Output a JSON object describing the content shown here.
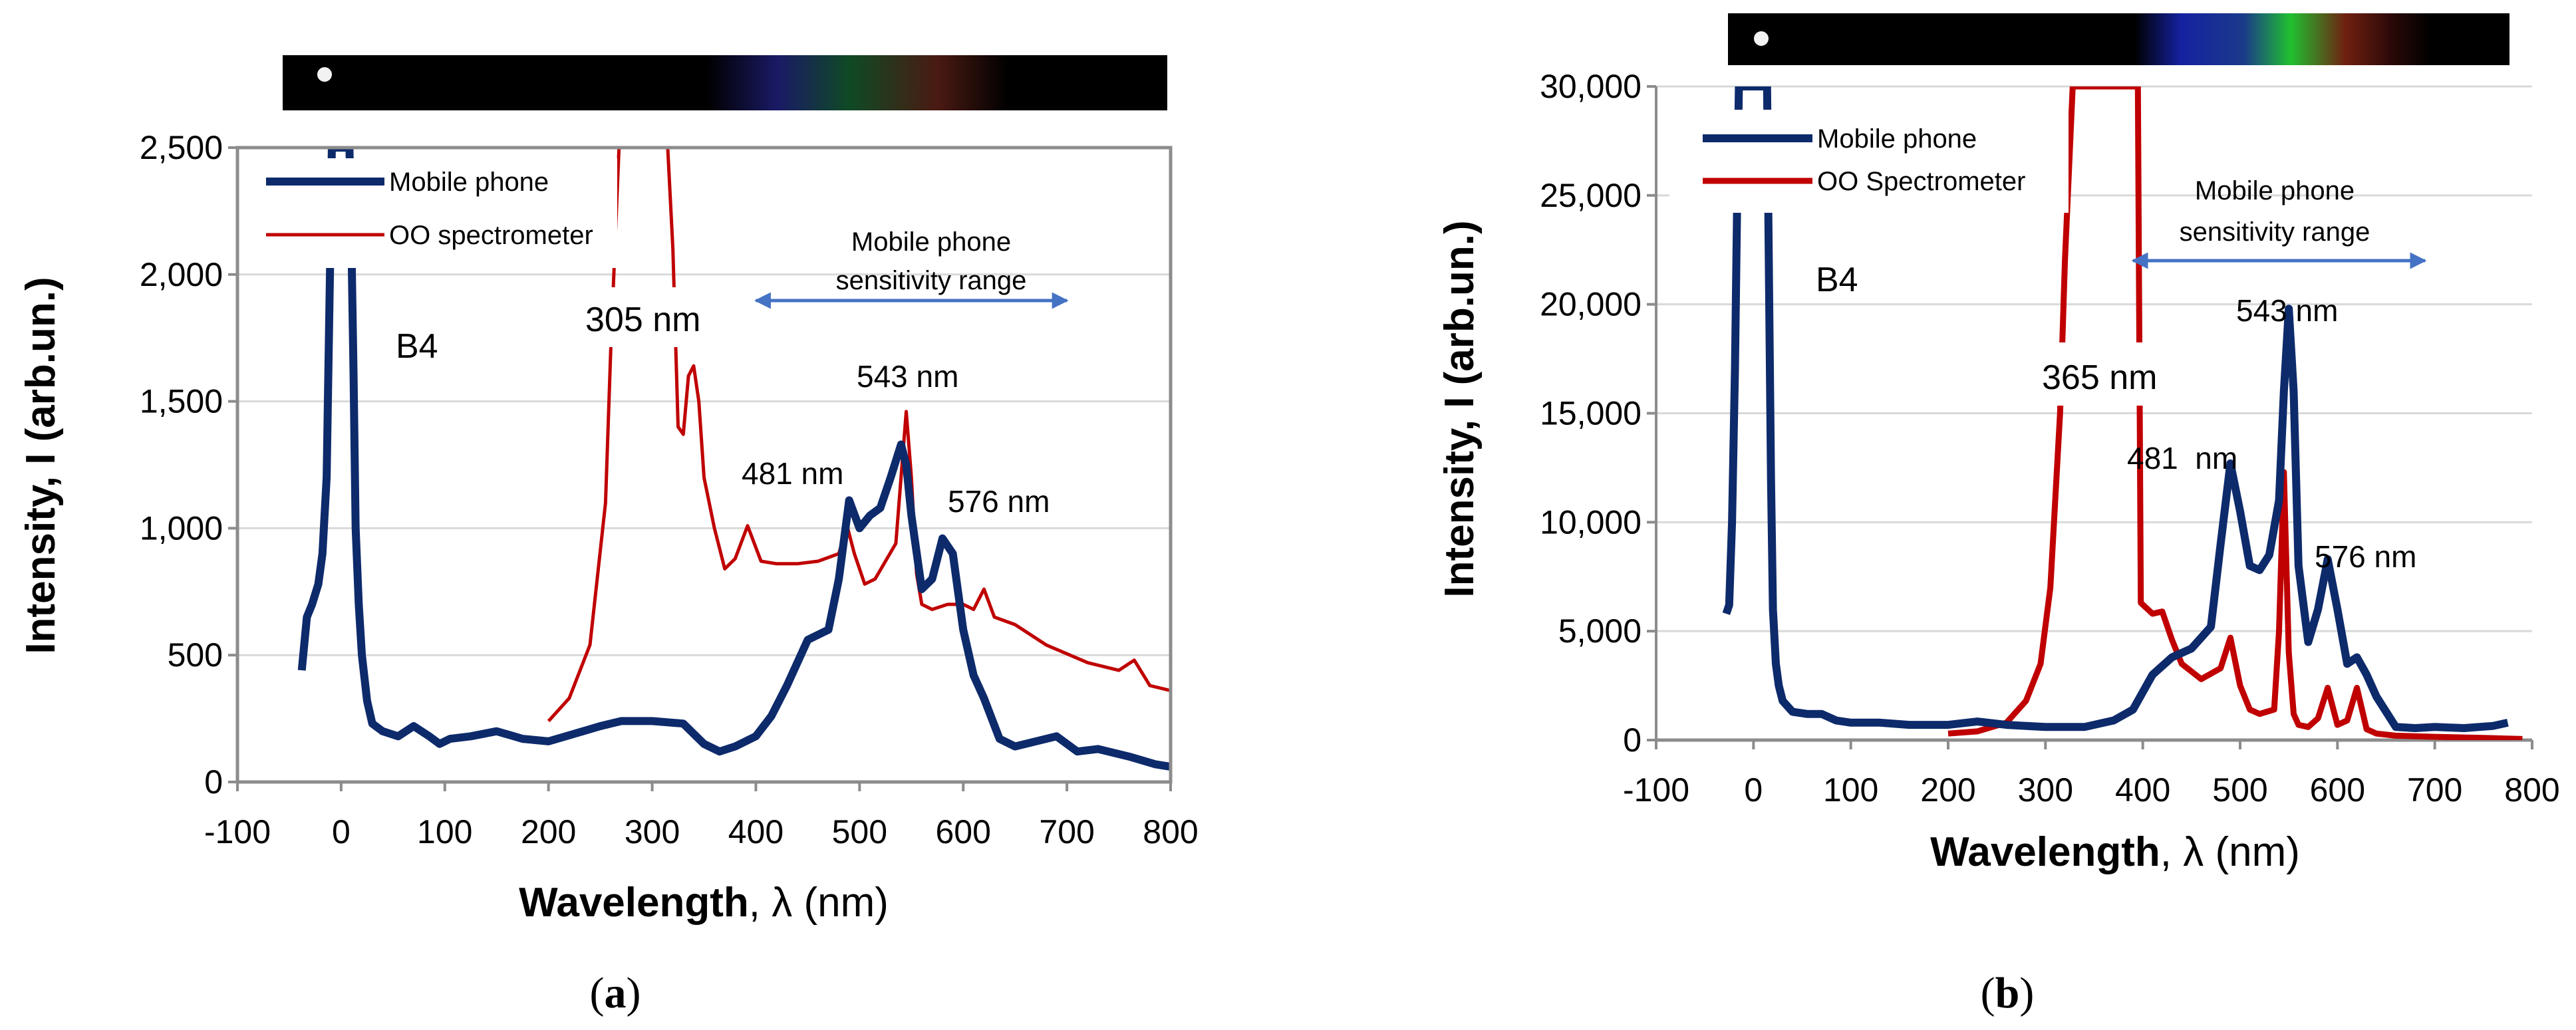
{
  "colors": {
    "mobile": "#0d2a6b",
    "oo": "#c00000",
    "arrow": "#4472c4"
  },
  "chart_data": [
    {
      "type": "line",
      "panel_label": "a",
      "caption_open": "(",
      "caption_close": ")",
      "sample_label": "B4",
      "xlabel_bold": "Wavelength",
      "xlabel_rest": ", λ (nm)",
      "ylabel": "Intensity, I (arb.un.)",
      "xlim": [
        -100,
        800
      ],
      "ylim": [
        0,
        2500
      ],
      "xticks": [
        -100,
        0,
        100,
        200,
        300,
        400,
        500,
        600,
        700,
        800
      ],
      "yticks": [
        0,
        500,
        1000,
        1500,
        2000,
        2500
      ],
      "xtick_labels": [
        "-100",
        "0",
        "100",
        "200",
        "300",
        "400",
        "500",
        "600",
        "700",
        "800"
      ],
      "ytick_labels": [
        "0",
        "500",
        "1,000",
        "1,500",
        "2,000",
        "2,500"
      ],
      "grid": "horizontal",
      "legend": [
        "Mobile phone",
        "OO spectrometer"
      ],
      "range_label_line1": "Mobile phone",
      "range_label_line2": "sensitivity range",
      "range_arrow": [
        400,
        700
      ],
      "annotations": [
        "305 nm",
        "481 nm",
        "543 nm",
        "576 nm"
      ],
      "series": [
        {
          "name": "Mobile phone",
          "x": [
            -38,
            -33,
            -28,
            -22,
            -18,
            -14,
            -12,
            -10,
            -9,
            8,
            10,
            12,
            14,
            17,
            20,
            25,
            30,
            40,
            55,
            70,
            85,
            95,
            105,
            125,
            150,
            175,
            200,
            225,
            250,
            270,
            300,
            330,
            350,
            365,
            380,
            400,
            415,
            430,
            450,
            470,
            480,
            490,
            500,
            510,
            520,
            530,
            540,
            545,
            550,
            560,
            570,
            580,
            590,
            600,
            610,
            620,
            635,
            650,
            670,
            690,
            710,
            730,
            760,
            785,
            800
          ],
          "y": [
            440,
            650,
            700,
            780,
            900,
            1200,
            1700,
            2200,
            2500,
            2500,
            2100,
            1600,
            1000,
            700,
            500,
            320,
            230,
            200,
            180,
            220,
            180,
            150,
            170,
            180,
            200,
            170,
            160,
            190,
            220,
            240,
            240,
            230,
            150,
            120,
            140,
            180,
            260,
            380,
            560,
            600,
            800,
            1110,
            1000,
            1050,
            1080,
            1200,
            1330,
            1250,
            1050,
            760,
            800,
            960,
            900,
            600,
            420,
            330,
            170,
            140,
            160,
            180,
            120,
            130,
            100,
            70,
            60
          ]
        },
        {
          "name": "OO spectrometer",
          "x": [
            200,
            220,
            240,
            255,
            260,
            265,
            268,
            315,
            320,
            325,
            330,
            335,
            340,
            345,
            350,
            360,
            370,
            380,
            392,
            405,
            420,
            440,
            460,
            480,
            488,
            495,
            505,
            515,
            525,
            535,
            540,
            545,
            550,
            555,
            560,
            570,
            585,
            600,
            610,
            620,
            630,
            650,
            680,
            720,
            750,
            765,
            780,
            800
          ],
          "y": [
            240,
            330,
            540,
            1100,
            1700,
            2200,
            2500,
            2500,
            2100,
            1400,
            1370,
            1600,
            1640,
            1500,
            1200,
            1000,
            840,
            880,
            1010,
            870,
            860,
            860,
            870,
            900,
            1010,
            900,
            780,
            800,
            870,
            940,
            1200,
            1460,
            1200,
            820,
            700,
            680,
            700,
            700,
            680,
            760,
            650,
            620,
            540,
            470,
            440,
            480,
            380,
            360
          ]
        }
      ]
    },
    {
      "type": "line",
      "panel_label": "b",
      "caption_open": "(",
      "caption_close": ")",
      "sample_label": "B4",
      "xlabel_bold": "Wavelength",
      "xlabel_rest": ", λ (nm)",
      "ylabel": "Intensity, I (arb.un.)",
      "xlim": [
        -100,
        800
      ],
      "ylim": [
        0,
        30000
      ],
      "xticks": [
        -100,
        0,
        100,
        200,
        300,
        400,
        500,
        600,
        700,
        800
      ],
      "yticks": [
        0,
        5000,
        10000,
        15000,
        20000,
        25000,
        30000
      ],
      "xtick_labels": [
        "-100",
        "0",
        "100",
        "200",
        "300",
        "400",
        "500",
        "600",
        "700",
        "800"
      ],
      "ytick_labels": [
        "0",
        "5,000",
        "10,000",
        "15,000",
        "20,000",
        "25,000",
        "30,000"
      ],
      "grid": "horizontal",
      "legend": [
        "Mobile phone",
        "OO Spectrometer"
      ],
      "range_label_line1": "Mobile phone",
      "range_label_line2": "sensitivity range",
      "range_arrow": [
        390,
        690
      ],
      "annotations": [
        "365 nm",
        "481  nm",
        "543 nm",
        "576 nm"
      ],
      "series": [
        {
          "name": "Mobile phone",
          "x": [
            -28,
            -25,
            -22,
            -19,
            -17,
            -15,
            14,
            16,
            18,
            20,
            23,
            26,
            30,
            40,
            55,
            70,
            85,
            100,
            130,
            160,
            200,
            230,
            260,
            300,
            340,
            370,
            390,
            410,
            430,
            450,
            470,
            480,
            490,
            500,
            510,
            520,
            530,
            540,
            545,
            550,
            555,
            560,
            570,
            580,
            590,
            600,
            610,
            620,
            630,
            640,
            660,
            680,
            700,
            730,
            760,
            775
          ],
          "y": [
            5800,
            6200,
            10000,
            17000,
            24000,
            30000,
            30000,
            21000,
            12000,
            6000,
            3500,
            2500,
            1800,
            1300,
            1200,
            1200,
            900,
            800,
            800,
            700,
            700,
            850,
            700,
            600,
            600,
            900,
            1400,
            3000,
            3800,
            4200,
            5200,
            9000,
            12700,
            10500,
            8000,
            7800,
            8500,
            11000,
            16000,
            19800,
            16000,
            8000,
            4500,
            6000,
            8300,
            6000,
            3500,
            3800,
            3000,
            2000,
            600,
            550,
            600,
            550,
            650,
            800
          ]
        },
        {
          "name": "OO Spectrometer",
          "x": [
            200,
            230,
            260,
            280,
            295,
            305,
            315,
            320,
            325,
            328,
            395,
            398,
            410,
            420,
            430,
            440,
            460,
            480,
            490,
            500,
            510,
            520,
            535,
            540,
            545,
            550,
            555,
            560,
            570,
            580,
            590,
            600,
            610,
            620,
            630,
            640,
            660,
            700,
            750,
            790
          ],
          "y": [
            300,
            400,
            800,
            1800,
            3500,
            7000,
            15000,
            22000,
            27000,
            30000,
            30000,
            6300,
            5800,
            5900,
            4600,
            3500,
            2800,
            3300,
            4700,
            2500,
            1400,
            1200,
            1400,
            5000,
            12300,
            4000,
            1200,
            700,
            600,
            1000,
            2400,
            700,
            900,
            2400,
            500,
            300,
            200,
            150,
            100,
            50
          ]
        }
      ]
    }
  ]
}
